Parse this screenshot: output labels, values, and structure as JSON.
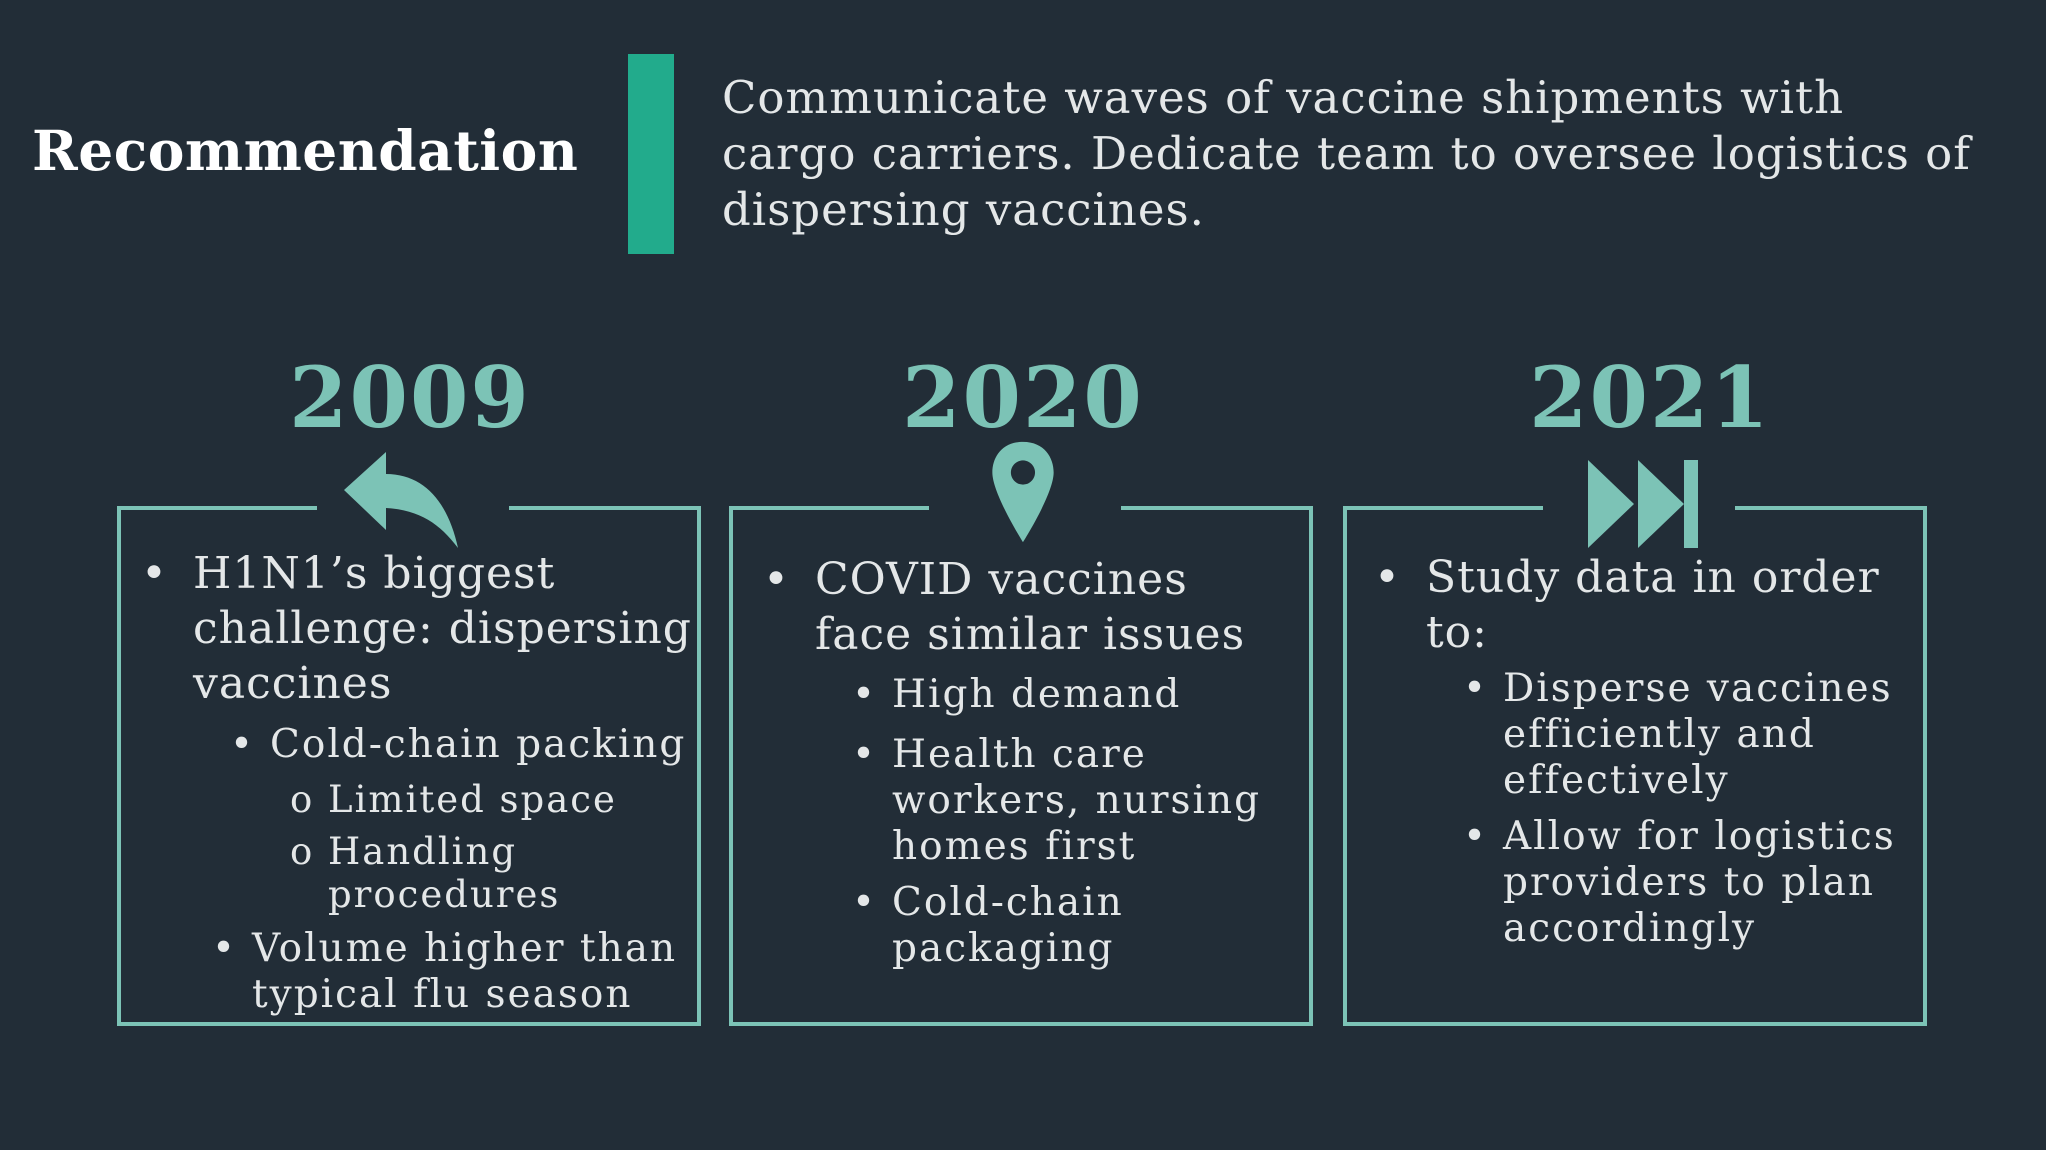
{
  "recommendation": {
    "heading": "Recommendation",
    "text": "Communicate waves of vaccine shipments with cargo carriers. Dedicate team to oversee logistics of dispersing vaccines."
  },
  "colors": {
    "background": "#222d37",
    "accent_bar": "#22ab8c",
    "teal": "#7cc3b6",
    "text": "#e4e7e8"
  },
  "timeline": [
    {
      "year": "2009",
      "icon": "back-arrow-icon",
      "bullet": "H1N1’s biggest challenge: dispersing vaccines",
      "sub_a": "Cold-chain packing",
      "sub_a_items": [
        "Limited space",
        "Handling procedures"
      ],
      "sub_b": "Volume higher than typical flu season"
    },
    {
      "year": "2020",
      "icon": "map-pin-icon",
      "bullet": "COVID vaccines face similar issues",
      "subs": [
        "High demand",
        "Health care workers, nursing homes first",
        "Cold-chain packaging"
      ]
    },
    {
      "year": "2021",
      "icon": "fast-forward-icon",
      "bullet": "Study data in order to:",
      "subs": [
        "Disperse vaccines efficiently and effectively",
        "Allow for logistics providers to plan accordingly"
      ]
    }
  ]
}
